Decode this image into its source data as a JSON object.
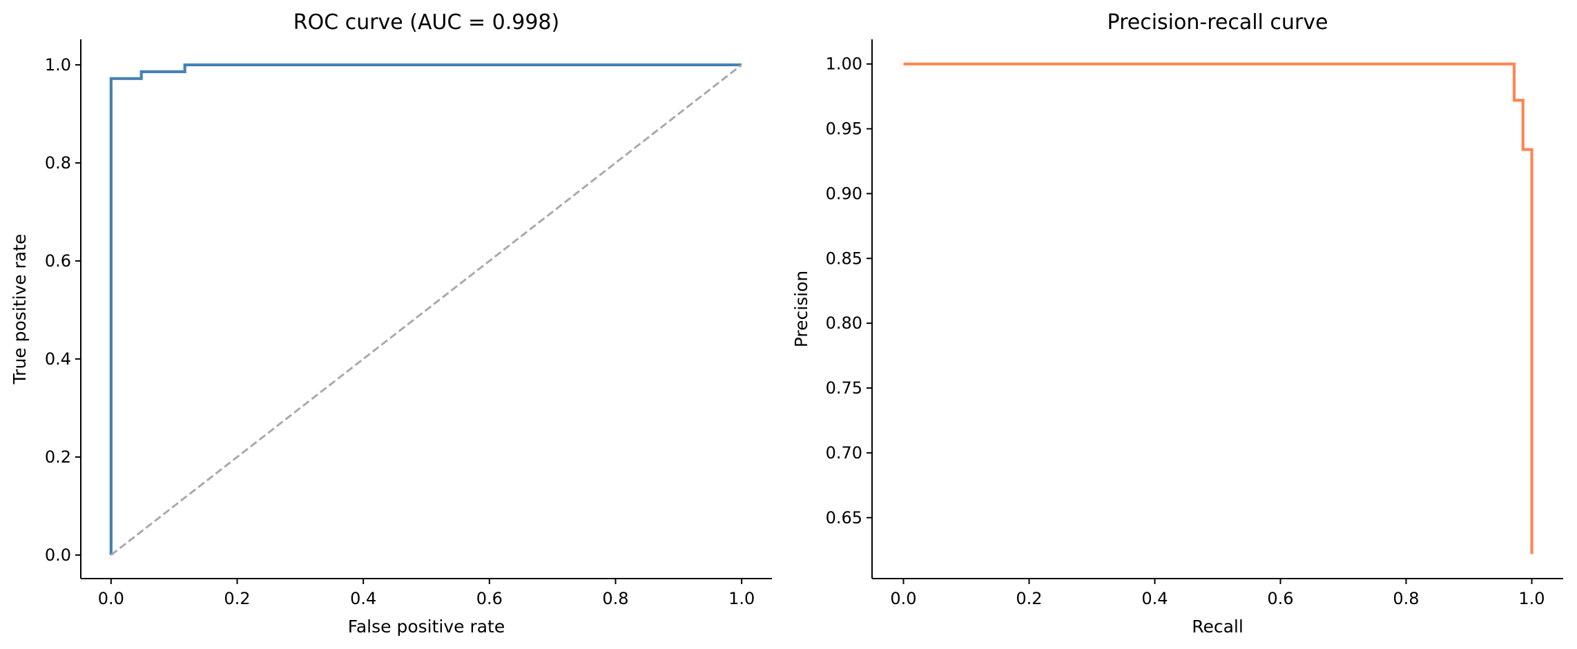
{
  "chart_data": [
    {
      "type": "line",
      "title": "ROC curve (AUC = 0.998)",
      "xlabel": "False positive rate",
      "ylabel": "True positive rate",
      "xlim": [
        -0.048,
        1.048
      ],
      "ylim": [
        -0.048,
        1.052
      ],
      "xticks": [
        0.0,
        0.2,
        0.4,
        0.6,
        0.8,
        1.0
      ],
      "xtick_labels": [
        "0.0",
        "0.2",
        "0.4",
        "0.6",
        "0.8",
        "1.0"
      ],
      "yticks": [
        0.0,
        0.2,
        0.4,
        0.6,
        0.8,
        1.0
      ],
      "ytick_labels": [
        "0.0",
        "0.2",
        "0.4",
        "0.6",
        "0.8",
        "1.0"
      ],
      "grid": false,
      "series": [
        {
          "color": "#4682b4",
          "line": "step",
          "x": [
            0.0,
            0.0,
            0.048,
            0.048,
            0.117,
            0.117,
            1.0
          ],
          "y": [
            0.0,
            0.972,
            0.972,
            0.986,
            0.986,
            1.0,
            1.0
          ]
        },
        {
          "color": "#aaaaaa",
          "line": "dashed",
          "x": [
            0.0,
            1.0
          ],
          "y": [
            0.0,
            1.0
          ]
        }
      ]
    },
    {
      "type": "line",
      "title": "Precision-recall curve",
      "xlabel": "Recall",
      "ylabel": "Precision",
      "xlim": [
        -0.05,
        1.05
      ],
      "ylim": [
        0.603,
        1.019
      ],
      "xticks": [
        0.0,
        0.2,
        0.4,
        0.6,
        0.8,
        1.0
      ],
      "xtick_labels": [
        "0.0",
        "0.2",
        "0.4",
        "0.6",
        "0.8",
        "1.0"
      ],
      "yticks": [
        0.65,
        0.7,
        0.75,
        0.8,
        0.85,
        0.9,
        0.95,
        1.0
      ],
      "ytick_labels": [
        "0.65",
        "0.70",
        "0.75",
        "0.80",
        "0.85",
        "0.90",
        "0.95",
        "1.00"
      ],
      "grid": false,
      "series": [
        {
          "color": "#ff8552",
          "line": "step",
          "x": [
            0.0,
            0.972,
            0.972,
            0.986,
            0.986,
            1.0,
            1.0
          ],
          "y": [
            1.0,
            1.0,
            0.972,
            0.972,
            0.934,
            0.934,
            0.622
          ]
        }
      ]
    }
  ]
}
